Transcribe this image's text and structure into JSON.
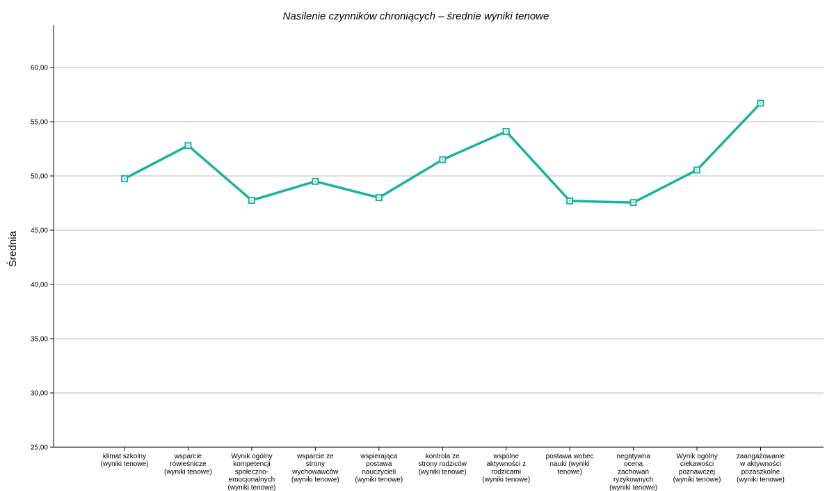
{
  "chart_data": {
    "type": "line",
    "title": "Nasilenie czynników chroniących – średnie wyniki tenowe",
    "ylabel": "Średnia",
    "xlabel": "",
    "ylim": [
      25,
      63
    ],
    "yticks": [
      "25,00",
      "30,00",
      "35,00",
      "40,00",
      "45,00",
      "50,00",
      "55,00",
      "60,00"
    ],
    "ytick_values": [
      25,
      30,
      35,
      40,
      45,
      50,
      55,
      60
    ],
    "grid": "horizontal",
    "line_color": "#16b3a0",
    "categories": [
      "klimat szkolny (wyniki tenowe)",
      "wsparcie rówieśnicze (wyniki tenowe)",
      "Wynik ogólny kompetencji społeczno-emocjonalnych (wyniki tenowe)",
      "wsparcie ze strony wychowawców (wyniki tenowe)",
      "wspierająca postawa nauczycieli (wyniki tenowe)",
      "kontrola ze strony rodziców (wyniki tenowe)",
      "wspólne aktywności z rodzicami (wyniki tenowe)",
      "postawa wobec nauki (wyniki tenowe)",
      "negatywna ocena zachowań ryzykownych (wyniki tenowe)",
      "Wynik ogólny ciekawości poznawczej (wyniki tenowe)",
      "zaangażowanie w aktywności pozaszkolne (wyniki tenowe)"
    ],
    "category_label_lines": [
      [
        "klimat szkolny",
        "(wyniki tenowe)"
      ],
      [
        "wsparcie",
        "rówieśnicze",
        "(wyniki tenowe)"
      ],
      [
        "Wynik ogólny",
        "kompetencji",
        "społeczno-",
        "emocjonalnych",
        "(wyniki tenowe)"
      ],
      [
        "wsparcie ze",
        "strony",
        "wychowawców",
        "(wyniki tenowe)"
      ],
      [
        "wspierająca",
        "postawa",
        "nauczycieli",
        "(wyniki tenowe)"
      ],
      [
        "kontrola ze",
        "strony rodziców",
        "(wyniki tenowe)"
      ],
      [
        "wspólne",
        "aktywności z",
        "rodzicami",
        "(wyniki tenowe)"
      ],
      [
        "postawa wobec",
        "nauki (wyniki",
        "tenowe)"
      ],
      [
        "negatywna",
        "ocena",
        "zachowań",
        "ryzykownych",
        "(wyniki tenowe)"
      ],
      [
        "Wynik ogólny",
        "ciekawości",
        "poznawczej",
        "(wyniki tenowe)"
      ],
      [
        "zaangażowanie",
        "w aktywności",
        "pozaszkolne",
        "(wyniki tenowe)"
      ]
    ],
    "values": [
      49.75,
      52.8,
      47.75,
      49.5,
      48.0,
      51.5,
      54.1,
      47.7,
      47.55,
      50.55,
      56.7
    ]
  }
}
